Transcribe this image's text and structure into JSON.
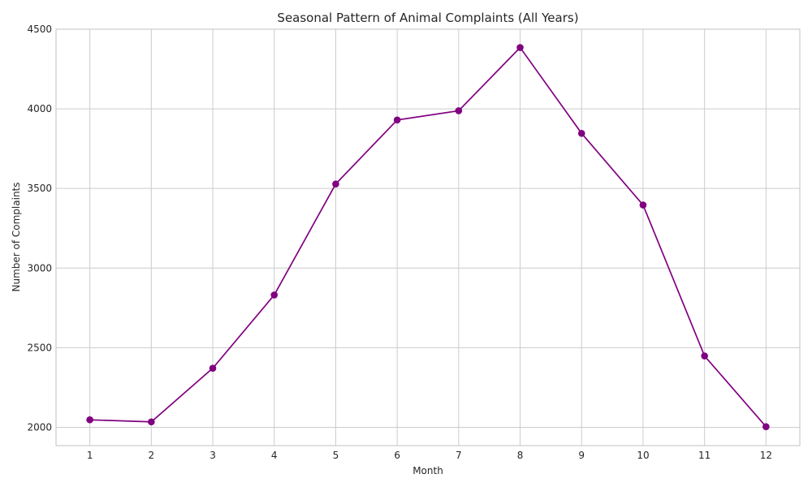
{
  "chart_data": {
    "type": "line",
    "title": "Seasonal Pattern of Animal Complaints (All Years)",
    "xlabel": "Month",
    "ylabel": "Number of Complaints",
    "x": [
      1,
      2,
      3,
      4,
      5,
      6,
      7,
      8,
      9,
      10,
      11,
      12
    ],
    "xticks": [
      "1",
      "2",
      "3",
      "4",
      "5",
      "6",
      "7",
      "8",
      "9",
      "10",
      "11",
      "12"
    ],
    "yticks": [
      2000,
      2500,
      3000,
      3500,
      4000,
      4500
    ],
    "ytick_labels": [
      "2000",
      "2500",
      "3000",
      "3500",
      "4000",
      "4500"
    ],
    "ylim": [
      1885,
      4500
    ],
    "xlim": [
      0.45,
      12.55
    ],
    "grid": true,
    "series": [
      {
        "values": [
          2047,
          2034,
          2371,
          2831,
          3528,
          3930,
          3988,
          4385,
          3846,
          3396,
          2448,
          2004
        ],
        "color": "#800080",
        "marker": "circle"
      }
    ]
  }
}
